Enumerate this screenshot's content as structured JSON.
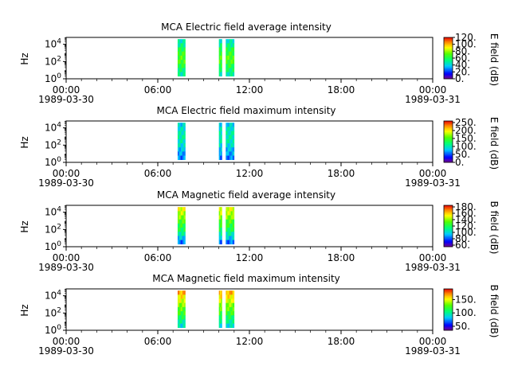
{
  "chart_data": [
    {
      "type": "heatmap",
      "title": "MCA  Electric field average intensity",
      "ylabel": "Hz",
      "colorbar_label": "E field (dB)",
      "colorbar_ticks": [
        "0.",
        "20.",
        "40.",
        "60.",
        "80.",
        "100.",
        "120."
      ],
      "colorbar_range": [
        0,
        120
      ],
      "y_scale": "log",
      "ylim_exp": [
        0,
        4.8
      ],
      "y_ticks": [
        {
          "base": "10",
          "exp": "0"
        },
        {
          "base": "10",
          "exp": "2"
        },
        {
          "base": "10",
          "exp": "4"
        }
      ],
      "x_ticks": [
        "00:00",
        "06:00",
        "12:00",
        "18:00",
        "00:00"
      ],
      "x_dates": [
        "1989-03-30",
        "1989-03-31"
      ],
      "xlim_hours": [
        0,
        24
      ],
      "data_intervals_hours": [
        [
          7.3,
          7.8
        ],
        [
          10.0,
          10.2
        ],
        [
          10.45,
          11.0
        ]
      ],
      "level_profile": [
        45,
        52,
        60,
        66,
        70,
        68,
        62,
        55,
        48
      ]
    },
    {
      "type": "heatmap",
      "title": "MCA  Electric field maximum intensity",
      "ylabel": "Hz",
      "colorbar_label": "E field (dB)",
      "colorbar_ticks": [
        "0.",
        "50.",
        "100.",
        "150.",
        "200.",
        "250."
      ],
      "colorbar_range": [
        0,
        260
      ],
      "y_scale": "log",
      "ylim_exp": [
        0,
        4.8
      ],
      "y_ticks": [
        {
          "base": "10",
          "exp": "0"
        },
        {
          "base": "10",
          "exp": "2"
        },
        {
          "base": "10",
          "exp": "4"
        }
      ],
      "x_ticks": [
        "00:00",
        "06:00",
        "12:00",
        "18:00",
        "00:00"
      ],
      "x_dates": [
        "1989-03-30",
        "1989-03-31"
      ],
      "xlim_hours": [
        0,
        24
      ],
      "data_intervals_hours": [
        [
          7.3,
          7.8
        ],
        [
          10.0,
          10.2
        ],
        [
          10.45,
          11.0
        ]
      ],
      "level_profile": [
        85,
        95,
        100,
        105,
        100,
        90,
        80,
        70,
        60
      ]
    },
    {
      "type": "heatmap",
      "title": "MCA  Magnetic field average intensity",
      "ylabel": "Hz",
      "colorbar_label": "B field (dB)",
      "colorbar_ticks": [
        "60.",
        "80.",
        "100.",
        "120.",
        "140.",
        "160.",
        "180."
      ],
      "colorbar_range": [
        55,
        185
      ],
      "y_scale": "log",
      "ylim_exp": [
        0,
        4.8
      ],
      "y_ticks": [
        {
          "base": "10",
          "exp": "0"
        },
        {
          "base": "10",
          "exp": "2"
        },
        {
          "base": "10",
          "exp": "4"
        }
      ],
      "x_ticks": [
        "00:00",
        "06:00",
        "12:00",
        "18:00",
        "00:00"
      ],
      "x_dates": [
        "1989-03-30",
        "1989-03-31"
      ],
      "xlim_hours": [
        0,
        24
      ],
      "data_intervals_hours": [
        [
          7.3,
          7.8
        ],
        [
          10.0,
          10.2
        ],
        [
          10.45,
          11.0
        ]
      ],
      "level_profile": [
        150,
        145,
        138,
        130,
        124,
        118,
        108,
        96,
        84
      ]
    },
    {
      "type": "heatmap",
      "title": "MCA  Magnetic field maximum intensity",
      "ylabel": "Hz",
      "colorbar_label": "B field (dB)",
      "colorbar_ticks": [
        "50.",
        "100.",
        "150."
      ],
      "colorbar_range": [
        35,
        190
      ],
      "y_scale": "log",
      "ylim_exp": [
        0,
        4.8
      ],
      "y_ticks": [
        {
          "base": "10",
          "exp": "0"
        },
        {
          "base": "10",
          "exp": "2"
        },
        {
          "base": "10",
          "exp": "4"
        }
      ],
      "x_ticks": [
        "00:00",
        "06:00",
        "12:00",
        "18:00",
        "00:00"
      ],
      "x_dates": [
        "1989-03-30",
        "1989-03-31"
      ],
      "xlim_hours": [
        0,
        24
      ],
      "data_intervals_hours": [
        [
          7.3,
          7.8
        ],
        [
          10.0,
          10.2
        ],
        [
          10.45,
          11.0
        ]
      ],
      "level_profile": [
        165,
        155,
        145,
        135,
        128,
        120,
        110,
        100,
        90
      ]
    }
  ]
}
